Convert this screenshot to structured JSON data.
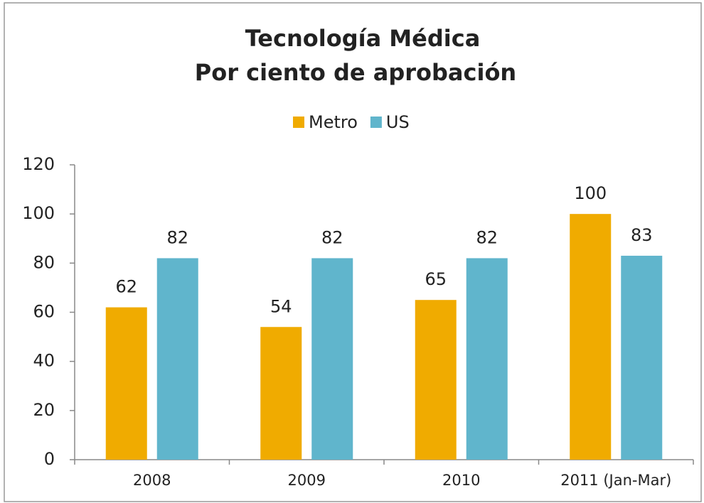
{
  "chart_data": {
    "type": "bar",
    "title": [
      "Tecnología Médica",
      "Por ciento de aprobación"
    ],
    "categories": [
      "2008",
      "2009",
      "2010",
      "2011 (Jan-Mar)"
    ],
    "series": [
      {
        "name": "Metro",
        "color": "#f0ab00",
        "values": [
          62,
          54,
          65,
          100
        ]
      },
      {
        "name": "US",
        "color": "#60b5cc",
        "values": [
          82,
          82,
          82,
          83
        ]
      }
    ],
    "ylim": [
      0,
      120
    ],
    "yticks": [
      0,
      20,
      40,
      60,
      80,
      100,
      120
    ],
    "legend": "top"
  }
}
